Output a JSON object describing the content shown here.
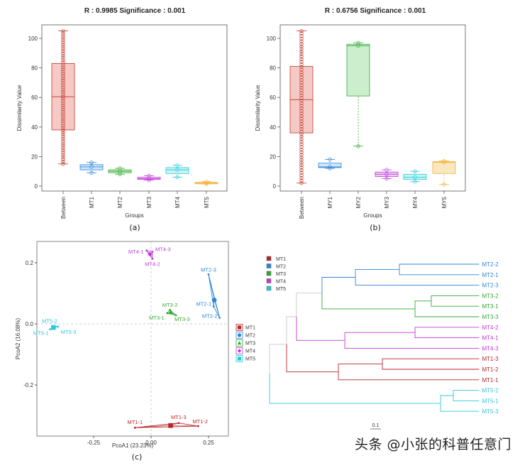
{
  "colors": {
    "MT1": "#b8262a",
    "MT2": "#2f86d8",
    "MT3": "#33a834",
    "MT4": "#c03ad8",
    "MT5": "#2cc8d8",
    "between": "#c0392b",
    "orange": "#f0b030",
    "gray": "#c8c8c8"
  },
  "chart_data": [
    {
      "type": "box",
      "panel": "(a)",
      "title": "R : 0.9985  Significance : 0.001",
      "xlabel": "Groups",
      "ylabel": "Dissimilarity Value",
      "ylim": [
        0,
        110
      ],
      "yticks": [
        "0",
        "20",
        "40",
        "60",
        "80",
        "100"
      ],
      "groups": [
        {
          "name": "Between",
          "color": "#c0392b",
          "fill": "#f5c9c6",
          "whisker": [
            15,
            105
          ],
          "q1": 38,
          "median": 60.5,
          "q3": 83,
          "points_range": [
            15,
            105
          ],
          "n_points": 60
        },
        {
          "name": "MT1",
          "color": "#2f86d8",
          "fill": "#cfe6fb",
          "whisker": [
            9,
            16
          ],
          "q1": 11,
          "median": 13,
          "q3": 14.5,
          "points": [
            9,
            13,
            16
          ]
        },
        {
          "name": "MT2",
          "color": "#33a834",
          "fill": "#cdeecd",
          "whisker": [
            8,
            12
          ],
          "q1": 9,
          "median": 10,
          "q3": 11,
          "points": [
            8,
            10,
            12
          ]
        },
        {
          "name": "MT3",
          "color": "#c03ad8",
          "fill": "#f0cdf6",
          "whisker": [
            4,
            7
          ],
          "q1": 4.5,
          "median": 5,
          "q3": 6,
          "points": [
            4,
            5,
            7
          ]
        },
        {
          "name": "MT4",
          "color": "#2cc8d8",
          "fill": "#cdf3f7",
          "whisker": [
            6,
            14
          ],
          "q1": 8.5,
          "median": 11,
          "q3": 12.5,
          "points": [
            6,
            11,
            14
          ]
        },
        {
          "name": "MT5",
          "color": "#f0b030",
          "fill": "#fbe7bf",
          "whisker": [
            1.5,
            3
          ],
          "q1": 1.5,
          "median": 2,
          "q3": 2.5,
          "points": [
            1.5,
            2,
            3
          ]
        }
      ]
    },
    {
      "type": "box",
      "panel": "(b)",
      "title": "R : 0.6756  Significance : 0.001",
      "xlabel": "Groups",
      "ylabel": "Dissimilarity Value",
      "ylim": [
        0,
        110
      ],
      "yticks": [
        "0",
        "20",
        "40",
        "60",
        "80",
        "100"
      ],
      "groups": [
        {
          "name": "Between",
          "color": "#c0392b",
          "fill": "#f5c9c6",
          "whisker": [
            2,
            105
          ],
          "q1": 36,
          "median": 58.5,
          "q3": 81,
          "points_range": [
            2,
            105
          ],
          "n_points": 60
        },
        {
          "name": "MY1",
          "color": "#2f86d8",
          "fill": "#cfe6fb",
          "whisker": [
            12,
            18
          ],
          "q1": 12.5,
          "median": 13,
          "q3": 15.5,
          "points": [
            12,
            13,
            18
          ]
        },
        {
          "name": "MY2",
          "color": "#33a834",
          "fill": "#cdeecd",
          "whisker": [
            27,
            97
          ],
          "q1": 61,
          "median": 95,
          "q3": 96,
          "points": [
            27,
            95,
            97
          ]
        },
        {
          "name": "MY3",
          "color": "#c03ad8",
          "fill": "#f0cdf6",
          "whisker": [
            5,
            11
          ],
          "q1": 6.5,
          "median": 8,
          "q3": 9.5,
          "points": [
            5,
            8,
            11
          ]
        },
        {
          "name": "MY4",
          "color": "#2cc8d8",
          "fill": "#cdf3f7",
          "whisker": [
            3,
            10
          ],
          "q1": 4.5,
          "median": 6,
          "q3": 8,
          "points": [
            3,
            6,
            10
          ]
        },
        {
          "name": "MY5",
          "color": "#f0b030",
          "fill": "#fbe7bf",
          "whisker": [
            1,
            17
          ],
          "q1": 8.5,
          "median": 16,
          "q3": 16.5,
          "points": [
            1,
            16,
            17
          ]
        }
      ]
    },
    {
      "type": "scatter",
      "panel": "(c)",
      "xlabel": "PcoA1 (23.23%)",
      "ylabel": "PcoA2 (16.08%)",
      "xlim": [
        -0.5,
        0.34
      ],
      "ylim": [
        -0.365,
        0.275
      ],
      "xticks": [
        {
          "v": -0.25,
          "label": "-0.25"
        },
        {
          "v": 0,
          "label": "0.00"
        },
        {
          "v": 0.25,
          "label": "0.25"
        }
      ],
      "yticks": [
        {
          "v": -0.2,
          "label": "-0.2"
        },
        {
          "v": 0,
          "label": "0.0"
        },
        {
          "v": 0.2,
          "label": "0.2"
        }
      ],
      "legend": "right",
      "series": [
        {
          "name": "MT1",
          "color": "#b8262a",
          "shape": "square",
          "centroid": [
            0.085,
            -0.333
          ],
          "points": [
            {
              "label": "MT1-1",
              "x": -0.07,
              "y": -0.34
            },
            {
              "label": "MT1-3",
              "x": 0.12,
              "y": -0.325
            },
            {
              "label": "MT1-2",
              "x": 0.205,
              "y": -0.335
            }
          ]
        },
        {
          "name": "MT2",
          "color": "#2f86d8",
          "shape": "circle",
          "centroid": [
            0.275,
            0.078
          ],
          "points": [
            {
              "label": "MT2-3",
              "x": 0.25,
              "y": 0.162
            },
            {
              "label": "MT2-1",
              "x": 0.272,
              "y": 0.057
            },
            {
              "label": "MT2-2",
              "x": 0.298,
              "y": 0.02
            }
          ]
        },
        {
          "name": "MT3",
          "color": "#33a834",
          "shape": "triangle",
          "centroid": [
            0.085,
            0.038
          ],
          "points": [
            {
              "label": "MT3-2",
              "x": 0.082,
              "y": 0.046
            },
            {
              "label": "MT3-1",
              "x": 0.07,
              "y": 0.035
            },
            {
              "label": "MT3-3",
              "x": 0.108,
              "y": 0.028
            }
          ]
        },
        {
          "name": "MT4",
          "color": "#c03ad8",
          "shape": "diamond",
          "centroid": [
            -0.005,
            0.228
          ],
          "points": [
            {
              "label": "MT4-1",
              "x": -0.02,
              "y": 0.24
            },
            {
              "label": "MT4-3",
              "x": 0.006,
              "y": 0.236
            },
            {
              "label": "MT4-2",
              "x": 0.006,
              "y": 0.213
            }
          ]
        },
        {
          "name": "MT5",
          "color": "#2cc8d8",
          "shape": "square",
          "centroid": [
            -0.425,
            -0.012
          ],
          "points": [
            {
              "label": "MT5-2",
              "x": -0.42,
              "y": -0.008
            },
            {
              "label": "MT5-1",
              "x": -0.44,
              "y": -0.018
            },
            {
              "label": "MT5-3",
              "x": -0.405,
              "y": -0.009
            }
          ]
        }
      ]
    },
    {
      "type": "dendrogram",
      "panel": "",
      "scale_bar": "0.1",
      "leaf_depth": 1.97,
      "legend": [
        {
          "name": "MT1",
          "color": "#b8262a"
        },
        {
          "name": "MT2",
          "color": "#2f86d8"
        },
        {
          "name": "MT3",
          "color": "#33a834"
        },
        {
          "name": "MT4",
          "color": "#c03ad8"
        },
        {
          "name": "MT5",
          "color": "#2cc8d8"
        }
      ],
      "tree": {
        "d": 0,
        "c": "#c8c8c8",
        "ch": [
          {
            "d": 0.16,
            "c": "#c8c8c8",
            "ch": [
              {
                "d": 0.253,
                "c": "#c8c8c8",
                "ch": [
                  {
                    "d": 0.493,
                    "c": "#c8c8c8",
                    "ch": [
                      {
                        "d": 0.807,
                        "c": "#2f86d8",
                        "ch": [
                          {
                            "d": 1.22,
                            "c": "#2f86d8",
                            "ch": [
                              {
                                "leaf": "MT2-2",
                                "c": "#2f86d8"
                              },
                              {
                                "leaf": "MT2-1",
                                "c": "#2f86d8"
                              }
                            ]
                          },
                          {
                            "leaf": "MT2-3",
                            "c": "#2f86d8"
                          }
                        ]
                      },
                      {
                        "d": 1.367,
                        "c": "#33a834",
                        "ch": [
                          {
                            "d": 1.52,
                            "c": "#33a834",
                            "ch": [
                              {
                                "leaf": "MT3-2",
                                "c": "#33a834"
                              },
                              {
                                "leaf": "MT3-1",
                                "c": "#33a834"
                              }
                            ]
                          },
                          {
                            "leaf": "MT3-3",
                            "c": "#33a834"
                          }
                        ]
                      }
                    ]
                  },
                  {
                    "d": 0.707,
                    "c": "#c03ad8",
                    "ch": [
                      {
                        "d": 1.367,
                        "c": "#c03ad8",
                        "ch": [
                          {
                            "leaf": "MT4-2",
                            "c": "#c03ad8"
                          },
                          {
                            "leaf": "MT4-1",
                            "c": "#c03ad8"
                          }
                        ]
                      },
                      {
                        "leaf": "MT4-3",
                        "c": "#c03ad8"
                      }
                    ]
                  }
                ]
              },
              {
                "d": 0.647,
                "c": "#b8262a",
                "ch": [
                  {
                    "d": 1.06,
                    "c": "#b8262a",
                    "ch": [
                      {
                        "leaf": "MT1-3",
                        "c": "#b8262a"
                      },
                      {
                        "leaf": "MT1-2",
                        "c": "#b8262a"
                      }
                    ]
                  },
                  {
                    "leaf": "MT1-1",
                    "c": "#b8262a"
                  }
                ]
              }
            ]
          },
          {
            "d": 1.607,
            "c": "#2cc8d8",
            "ch": [
              {
                "d": 1.727,
                "c": "#2cc8d8",
                "ch": [
                  {
                    "leaf": "MT5-2",
                    "c": "#2cc8d8"
                  },
                  {
                    "leaf": "MT5-1",
                    "c": "#2cc8d8"
                  }
                ]
              },
              {
                "leaf": "MT5-3",
                "c": "#2cc8d8"
              }
            ]
          }
        ]
      }
    }
  ],
  "watermark": "头条 @小张的科普任意门"
}
